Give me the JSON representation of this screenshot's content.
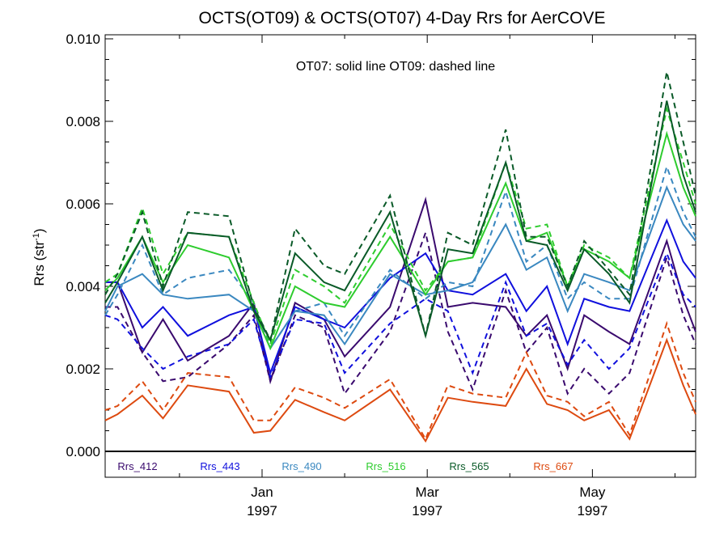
{
  "chart_data": {
    "type": "line",
    "title": "OCTS(OT09) & OCTS(OT07) 4-Day Rrs for AerCOVE",
    "xlabel": "",
    "ylabel": "Rrs (str",
    "ylabel_sup": "-1",
    "ylabel_close": ")",
    "annotation": "OT07: solid line   OT09: dashed line",
    "ylim": [
      0.0,
      0.0101
    ],
    "xlim": [
      -1.9,
      5.25
    ],
    "y_ticks": [
      "0.000",
      "0.002",
      "0.004",
      "0.006",
      "0.008",
      "0.010"
    ],
    "x_ticks": [
      {
        "value": 0,
        "month": "Jan",
        "year": "1997"
      },
      {
        "value": 2,
        "month": "Mar",
        "year": "1997"
      },
      {
        "value": 4,
        "month": "May",
        "year": "1997"
      }
    ],
    "grid": false,
    "legend_position": "bottom",
    "x": [
      -1.9,
      -1.75,
      -1.45,
      -1.2,
      -0.9,
      -0.4,
      -0.1,
      0.1,
      0.4,
      0.75,
      1.0,
      1.55,
      1.98,
      2.25,
      2.55,
      2.95,
      3.2,
      3.45,
      3.7,
      3.9,
      4.2,
      4.45,
      4.9,
      5.1,
      5.25
    ],
    "series": [
      {
        "name": "Rrs_412",
        "color": "#3a0a6e",
        "solid": [
          0.0041,
          0.0041,
          0.0024,
          0.0032,
          0.0022,
          0.0028,
          0.0036,
          0.0017,
          0.0036,
          0.0032,
          0.0023,
          0.0035,
          0.0061,
          0.0035,
          0.0036,
          0.0035,
          0.0028,
          0.0033,
          0.002,
          0.0033,
          0.0029,
          0.0026,
          0.0051,
          0.0037,
          0.0029
        ],
        "dashed": [
          0.0035,
          0.0035,
          0.0024,
          0.0017,
          0.0018,
          0.0026,
          0.0033,
          0.0017,
          0.0033,
          0.003,
          0.0014,
          0.0029,
          0.0053,
          0.0029,
          0.0015,
          0.0039,
          0.0024,
          0.003,
          0.0014,
          0.002,
          0.0014,
          0.0019,
          0.0047,
          0.0033,
          0.0026
        ]
      },
      {
        "name": "Rrs_443",
        "color": "#1010dd",
        "solid": [
          0.0041,
          0.0041,
          0.003,
          0.0035,
          0.0028,
          0.0033,
          0.0035,
          0.0019,
          0.0035,
          0.0032,
          0.003,
          0.0042,
          0.0048,
          0.0039,
          0.0038,
          0.0043,
          0.0034,
          0.004,
          0.0026,
          0.0037,
          0.0035,
          0.0034,
          0.0056,
          0.0046,
          0.0042
        ],
        "dashed": [
          0.0033,
          0.0032,
          0.0025,
          0.002,
          0.0023,
          0.0026,
          0.0032,
          0.0018,
          0.0032,
          0.0031,
          0.0019,
          0.0031,
          0.0037,
          0.0034,
          0.0019,
          0.0041,
          0.0028,
          0.0031,
          0.0021,
          0.0027,
          0.002,
          0.0025,
          0.0048,
          0.0038,
          0.0035
        ]
      },
      {
        "name": "Rrs_490",
        "color": "#3a88c0",
        "solid": [
          0.0034,
          0.004,
          0.0043,
          0.0038,
          0.0037,
          0.0038,
          0.0034,
          0.0025,
          0.0034,
          0.0033,
          0.0026,
          0.0043,
          0.0038,
          0.0039,
          0.0041,
          0.0055,
          0.0044,
          0.0047,
          0.0034,
          0.0043,
          0.0041,
          0.0039,
          0.0064,
          0.0055,
          0.0051
        ],
        "dashed": [
          0.0033,
          0.0038,
          0.005,
          0.0038,
          0.0042,
          0.0044,
          0.0036,
          0.0025,
          0.0034,
          0.0036,
          0.0028,
          0.0044,
          0.0037,
          0.0041,
          0.004,
          0.0063,
          0.0046,
          0.005,
          0.0037,
          0.0041,
          0.0037,
          0.0037,
          0.0069,
          0.0058,
          0.0052
        ]
      },
      {
        "name": "Rrs_516",
        "color": "#2ecc2e",
        "solid": [
          0.0039,
          0.0042,
          0.0052,
          0.0041,
          0.005,
          0.0047,
          0.0034,
          0.0025,
          0.004,
          0.0036,
          0.0035,
          0.0052,
          0.0038,
          0.0046,
          0.0047,
          0.0065,
          0.0051,
          0.0053,
          0.004,
          0.0049,
          0.0046,
          0.0042,
          0.0077,
          0.0064,
          0.0057
        ],
        "dashed": [
          0.0041,
          0.0043,
          0.0059,
          0.0043,
          0.0053,
          0.0052,
          0.0036,
          0.0026,
          0.0044,
          0.004,
          0.0036,
          0.0055,
          0.0039,
          0.0046,
          0.0047,
          0.007,
          0.0054,
          0.0055,
          0.004,
          0.005,
          0.0047,
          0.0042,
          0.0083,
          0.007,
          0.006
        ]
      },
      {
        "name": "Rrs_565",
        "color": "#0a5a28",
        "solid": [
          0.0036,
          0.0041,
          0.0052,
          0.0039,
          0.0053,
          0.0052,
          0.0034,
          0.0027,
          0.0048,
          0.0041,
          0.0039,
          0.0058,
          0.0028,
          0.0049,
          0.0048,
          0.007,
          0.0051,
          0.005,
          0.0039,
          0.0049,
          0.0043,
          0.0036,
          0.0085,
          0.0067,
          0.0058
        ],
        "dashed": [
          0.0038,
          0.0043,
          0.0058,
          0.004,
          0.0058,
          0.0057,
          0.0035,
          0.0027,
          0.0054,
          0.0045,
          0.0043,
          0.0062,
          0.0028,
          0.0053,
          0.005,
          0.0078,
          0.0052,
          0.0052,
          0.004,
          0.0051,
          0.0044,
          0.0038,
          0.0092,
          0.0075,
          0.0062
        ]
      },
      {
        "name": "Rrs_667",
        "color": "#dd4a10",
        "solid": [
          0.00075,
          0.0009,
          0.00135,
          0.0008,
          0.0016,
          0.00145,
          0.00045,
          0.0005,
          0.00125,
          0.00095,
          0.00075,
          0.0015,
          0.00025,
          0.0013,
          0.0012,
          0.0011,
          0.002,
          0.00115,
          0.001,
          0.00075,
          0.001,
          0.0003,
          0.0027,
          0.0016,
          0.0009
        ],
        "dashed": [
          0.001,
          0.0011,
          0.0017,
          0.001,
          0.0019,
          0.0018,
          0.00075,
          0.00075,
          0.00155,
          0.0013,
          0.00105,
          0.00175,
          0.0003,
          0.0016,
          0.0014,
          0.0013,
          0.0024,
          0.00135,
          0.0012,
          0.00085,
          0.0012,
          0.0004,
          0.0031,
          0.0019,
          0.0012
        ]
      }
    ]
  }
}
